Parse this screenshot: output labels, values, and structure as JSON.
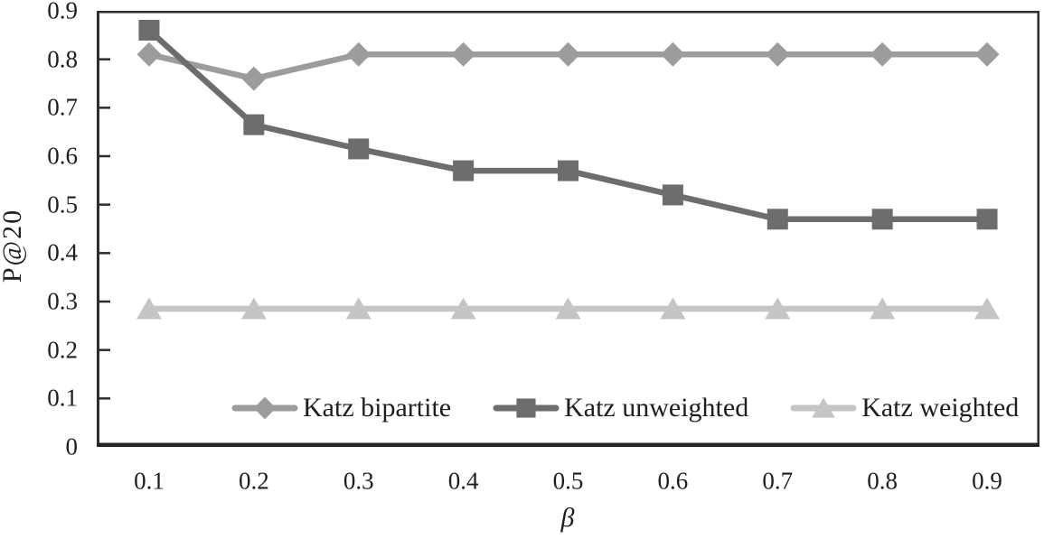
{
  "chart_data": {
    "type": "line",
    "title": "",
    "xlabel": "β",
    "ylabel": "P@20",
    "x": [
      0.1,
      0.2,
      0.3,
      0.4,
      0.5,
      0.6,
      0.7,
      0.8,
      0.9
    ],
    "x_tick_labels": [
      "0.1",
      "0.2",
      "0.3",
      "0.4",
      "0.5",
      "0.6",
      "0.7",
      "0.8",
      "0.9"
    ],
    "y_ticks": [
      0,
      0.1,
      0.2,
      0.3,
      0.4,
      0.5,
      0.6,
      0.7,
      0.8,
      0.9
    ],
    "y_tick_labels": [
      "0",
      "0.1",
      "0.2",
      "0.3",
      "0.4",
      "0.5",
      "0.6",
      "0.7",
      "0.8",
      "0.9"
    ],
    "xlim": [
      0.05,
      0.95
    ],
    "ylim": [
      0,
      0.9
    ],
    "grid": false,
    "legend_position": "bottom-inside",
    "axis_color": "#2d2d2d",
    "text_color": "#1e1e1e",
    "series": [
      {
        "name": "Katz bipartite",
        "marker": "diamond",
        "color": "#9b9c9e",
        "z": 1,
        "values": [
          0.81,
          0.76,
          0.81,
          0.81,
          0.81,
          0.81,
          0.81,
          0.81,
          0.81
        ]
      },
      {
        "name": "Katz unweighted",
        "marker": "square",
        "color": "#6c6d6f",
        "z": 3,
        "values": [
          0.86,
          0.665,
          0.615,
          0.57,
          0.57,
          0.52,
          0.47,
          0.47,
          0.47
        ]
      },
      {
        "name": "Katz weighted",
        "marker": "triangle",
        "color": "#c4c5c7",
        "z": 2,
        "values": [
          0.285,
          0.285,
          0.285,
          0.285,
          0.285,
          0.285,
          0.285,
          0.285,
          0.285
        ]
      }
    ]
  }
}
